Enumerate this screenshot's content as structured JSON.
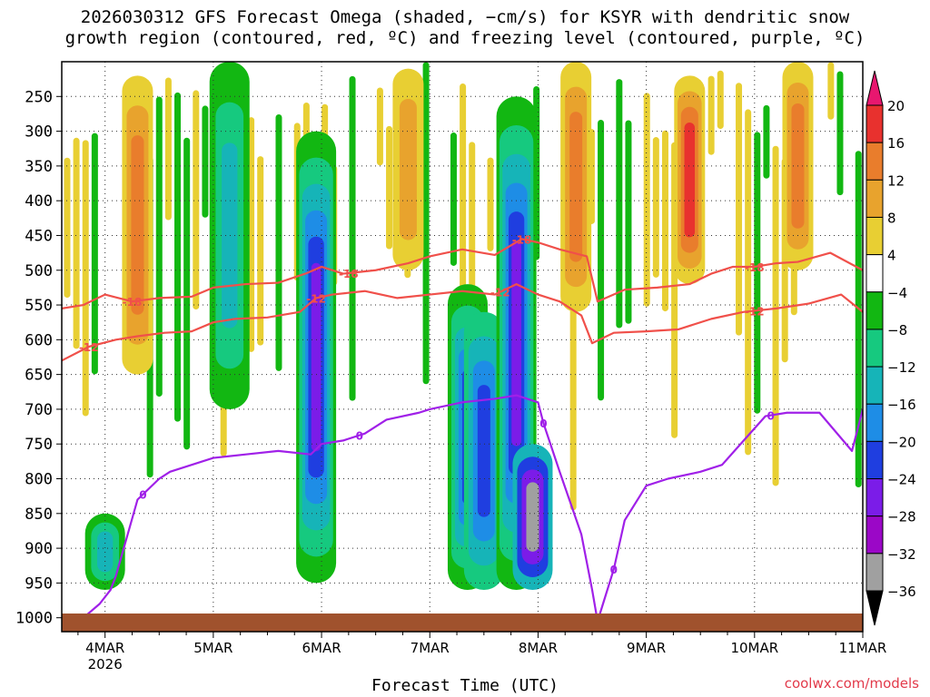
{
  "title_line1": "2026030312 GFS Forecast Omega (shaded, −cm/s) for KSYR with dendritic snow",
  "title_line2": "growth region (contoured, red, ºC) and freezing level (contoured, purple, ºC)",
  "x_axis_label": "Forecast Time (UTC)",
  "credit": "coolwx.com/models",
  "chart_data": {
    "type": "heatmap",
    "x_ticks": [
      "4MAR",
      "5MAR",
      "6MAR",
      "7MAR",
      "8MAR",
      "9MAR",
      "10MAR",
      "11MAR"
    ],
    "x_tick_sublabel": "2026",
    "x_range_days": [
      3.6,
      11.0
    ],
    "y_ticks": [
      250,
      300,
      350,
      400,
      450,
      500,
      550,
      600,
      650,
      700,
      750,
      800,
      850,
      900,
      950,
      1000
    ],
    "y_range_hpa": [
      200,
      1020
    ],
    "colorbar": {
      "labels": [
        "20",
        "16",
        "12",
        "8",
        "4",
        "−4",
        "−8",
        "−12",
        "−16",
        "−20",
        "−24",
        "−28",
        "−32",
        "−36"
      ],
      "colors": [
        "#e8176f",
        "#e8312e",
        "#e97d2c",
        "#e8a32d",
        "#e8cf33",
        "#ffffff",
        "#12b712",
        "#16c97f",
        "#16b4b8",
        "#1e8de6",
        "#1f3ee0",
        "#7b1ce8",
        "#9b07c7",
        "#a0a0a0",
        "#000000"
      ]
    },
    "series": [
      {
        "name": "-18",
        "color": "#f0504a",
        "label_at": [
          [
            4.25,
            "-18"
          ],
          [
            6.25,
            "-18"
          ],
          [
            7.85,
            "-18"
          ],
          [
            10.0,
            "-18"
          ]
        ],
        "x": [
          3.6,
          3.8,
          4.0,
          4.25,
          4.5,
          4.8,
          5.0,
          5.3,
          5.6,
          5.85,
          6.0,
          6.2,
          6.5,
          6.8,
          7.0,
          7.3,
          7.6,
          7.85,
          8.0,
          8.2,
          8.45,
          8.55,
          8.8,
          9.1,
          9.4,
          9.6,
          9.8,
          10.0,
          10.2,
          10.4,
          10.7,
          11.0
        ],
        "y": [
          555,
          550,
          535,
          545,
          540,
          538,
          525,
          520,
          518,
          505,
          495,
          505,
          500,
          490,
          480,
          470,
          478,
          455,
          460,
          470,
          480,
          545,
          528,
          525,
          520,
          505,
          495,
          495,
          490,
          488,
          475,
          500
        ]
      },
      {
        "name": "-12",
        "color": "#f0504a",
        "label_at": [
          [
            3.85,
            "-12"
          ],
          [
            5.95,
            "-12"
          ],
          [
            7.65,
            "-12"
          ],
          [
            10.0,
            "-12"
          ]
        ],
        "x": [
          3.6,
          3.85,
          4.1,
          4.3,
          4.55,
          4.8,
          5.0,
          5.2,
          5.5,
          5.8,
          5.95,
          6.1,
          6.4,
          6.7,
          7.0,
          7.3,
          7.6,
          7.8,
          8.0,
          8.2,
          8.4,
          8.5,
          8.7,
          9.0,
          9.3,
          9.6,
          9.9,
          10.2,
          10.5,
          10.8,
          11.0
        ],
        "y": [
          630,
          610,
          600,
          595,
          590,
          588,
          575,
          570,
          568,
          560,
          540,
          535,
          530,
          540,
          535,
          530,
          535,
          520,
          535,
          545,
          565,
          605,
          590,
          588,
          585,
          570,
          560,
          555,
          548,
          535,
          560
        ]
      },
      {
        "name": "0",
        "color": "#a020e8",
        "label_at": [
          [
            4.35,
            "0"
          ],
          [
            6.35,
            "0"
          ],
          [
            8.05,
            "0"
          ],
          [
            8.7,
            "0"
          ],
          [
            10.15,
            "0"
          ]
        ],
        "x": [
          3.6,
          3.8,
          3.95,
          4.05,
          4.1,
          4.3,
          4.5,
          4.6,
          4.8,
          5.0,
          5.3,
          5.6,
          5.9,
          6.0,
          6.2,
          6.4,
          6.6,
          6.9,
          7.0,
          7.3,
          7.6,
          7.8,
          8.0,
          8.05,
          8.2,
          8.4,
          8.5,
          8.55,
          8.6,
          8.7,
          8.8,
          9.0,
          9.2,
          9.5,
          9.7,
          9.9,
          10.1,
          10.3,
          10.6,
          10.9,
          11.0
        ],
        "y": [
          1010,
          1000,
          980,
          960,
          940,
          830,
          800,
          790,
          780,
          770,
          765,
          760,
          765,
          750,
          745,
          735,
          715,
          705,
          700,
          690,
          685,
          680,
          690,
          720,
          790,
          880,
          960,
          1005,
          980,
          930,
          860,
          810,
          800,
          790,
          780,
          745,
          710,
          705,
          705,
          760,
          700
        ]
      }
    ]
  }
}
